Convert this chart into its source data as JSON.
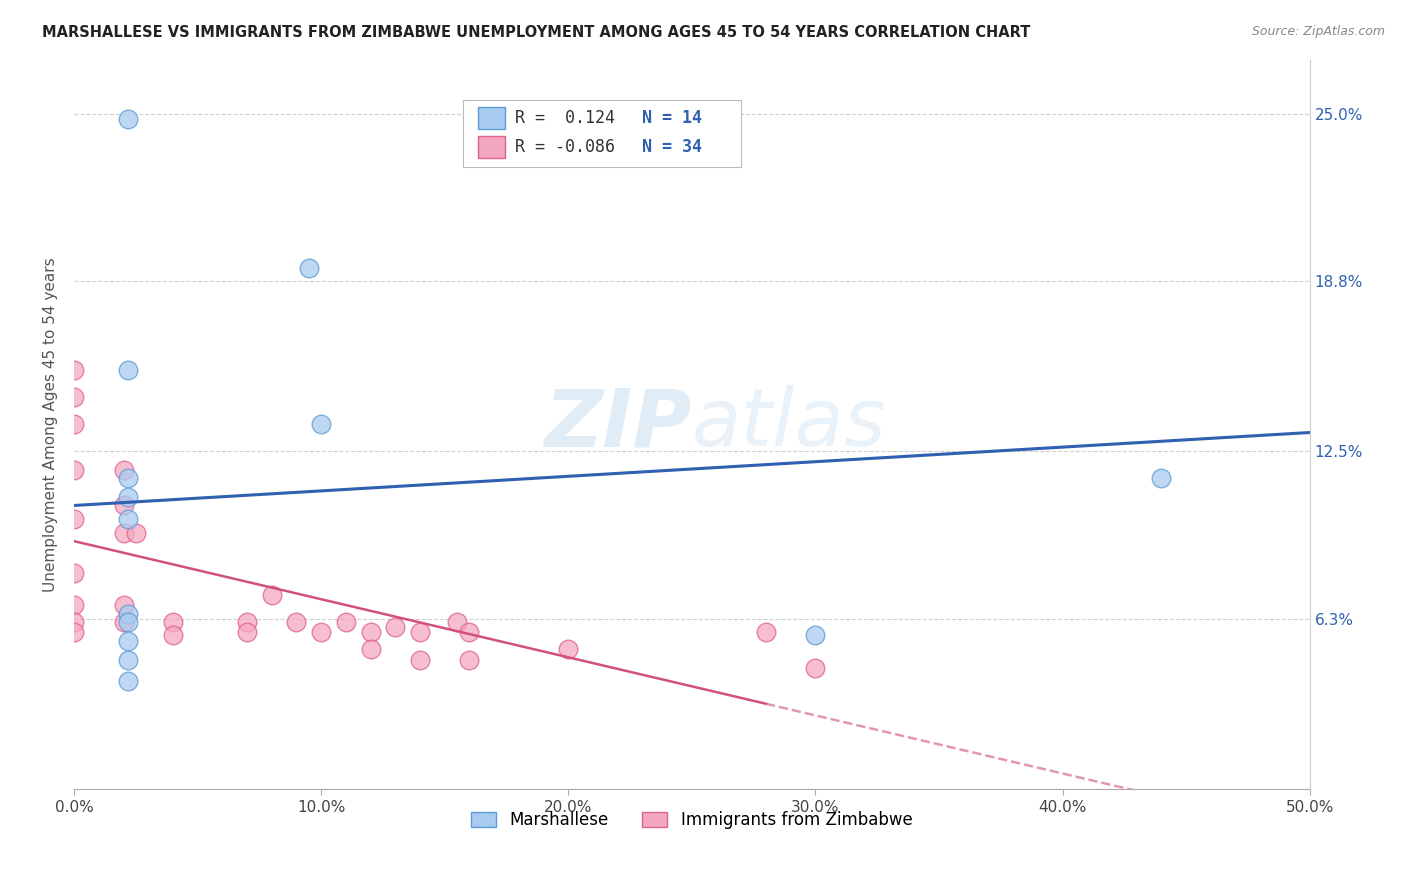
{
  "title": "MARSHALLESE VS IMMIGRANTS FROM ZIMBABWE UNEMPLOYMENT AMONG AGES 45 TO 54 YEARS CORRELATION CHART",
  "source": "Source: ZipAtlas.com",
  "ylabel": "Unemployment Among Ages 45 to 54 years",
  "xlim": [
    0.0,
    0.5
  ],
  "ylim": [
    0.0,
    0.27
  ],
  "xtick_labels": [
    "0.0%",
    "10.0%",
    "20.0%",
    "30.0%",
    "40.0%",
    "50.0%"
  ],
  "xtick_values": [
    0.0,
    0.1,
    0.2,
    0.3,
    0.4,
    0.5
  ],
  "ytick_values": [
    0.063,
    0.125,
    0.188,
    0.25
  ],
  "right_ytick_labels": [
    "6.3%",
    "12.5%",
    "18.8%",
    "25.0%"
  ],
  "right_ytick_values": [
    0.063,
    0.125,
    0.188,
    0.25
  ],
  "watermark": "ZIPatlas",
  "marshallese_color": "#A8CCF0",
  "zimbabwe_color": "#F4A8C0",
  "marshallese_edge": "#5B9BD5",
  "zimbabwe_edge": "#E06090",
  "trend_blue": "#3060B0",
  "trend_pink": "#D05080",
  "legend_r1": "R =  0.124",
  "legend_n1": "N = 14",
  "legend_r2": "R = -0.086",
  "legend_n2": "N = 34",
  "legend_label1": "Marshallese",
  "legend_label2": "Immigrants from Zimbabwe",
  "marshallese_x": [
    0.022,
    0.095,
    0.022,
    0.44,
    0.3,
    0.022,
    0.022,
    0.022,
    0.022,
    0.022,
    0.022,
    0.1,
    0.022,
    0.022
  ],
  "marshallese_y": [
    0.248,
    0.193,
    0.155,
    0.115,
    0.057,
    0.115,
    0.108,
    0.1,
    0.065,
    0.062,
    0.055,
    0.135,
    0.048,
    0.04
  ],
  "zimbabwe_x": [
    0.0,
    0.0,
    0.0,
    0.0,
    0.0,
    0.0,
    0.0,
    0.0,
    0.0,
    0.02,
    0.02,
    0.02,
    0.02,
    0.02,
    0.025,
    0.04,
    0.04,
    0.07,
    0.07,
    0.08,
    0.09,
    0.1,
    0.11,
    0.12,
    0.12,
    0.13,
    0.14,
    0.14,
    0.155,
    0.16,
    0.16,
    0.2,
    0.28,
    0.3
  ],
  "zimbabwe_y": [
    0.155,
    0.145,
    0.135,
    0.118,
    0.1,
    0.08,
    0.068,
    0.062,
    0.058,
    0.118,
    0.105,
    0.095,
    0.068,
    0.062,
    0.095,
    0.062,
    0.057,
    0.062,
    0.058,
    0.072,
    0.062,
    0.058,
    0.062,
    0.058,
    0.052,
    0.06,
    0.058,
    0.048,
    0.062,
    0.058,
    0.048,
    0.052,
    0.058,
    0.045
  ],
  "background_color": "#FFFFFF",
  "grid_color": "#D0D0D0"
}
